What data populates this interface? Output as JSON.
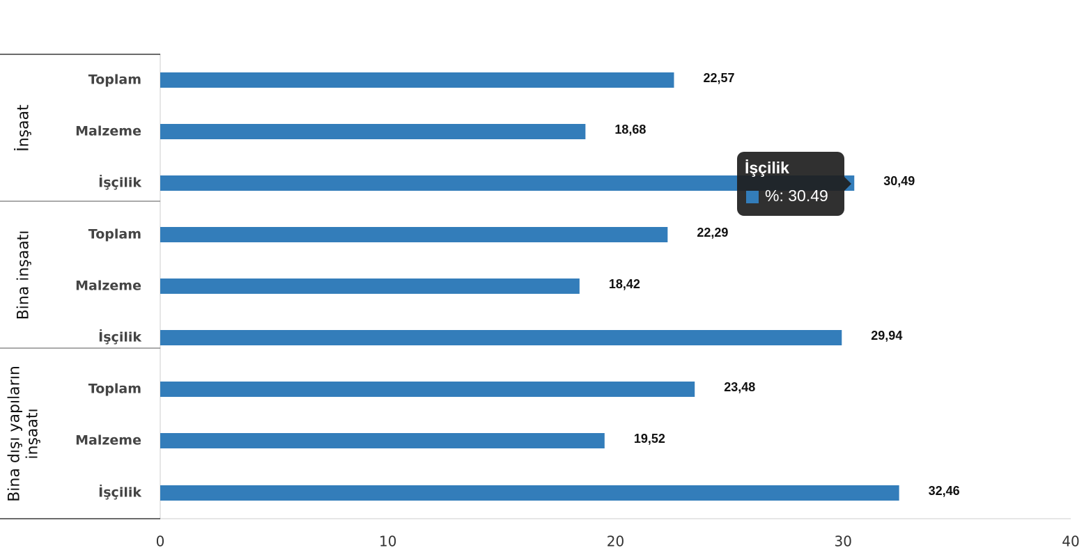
{
  "chart_data": {
    "type": "grouped-hbar",
    "series_name": "%",
    "color": "#337dba",
    "groups": [
      {
        "name": "İnşaat",
        "categories": [
          "Toplam",
          "Malzeme",
          "İşçilik"
        ],
        "values": [
          22.57,
          18.68,
          30.49
        ],
        "value_labels": [
          "22,57",
          "18,68",
          "30,49"
        ]
      },
      {
        "name": "Bina inşaatı",
        "categories": [
          "Toplam",
          "Malzeme",
          "İşçilik"
        ],
        "values": [
          22.29,
          18.42,
          29.94
        ],
        "value_labels": [
          "22,29",
          "18,42",
          "29,94"
        ]
      },
      {
        "name": "Bina dışı yapıların inşaatı",
        "categories": [
          "Toplam",
          "Malzeme",
          "İşçilik"
        ],
        "values": [
          23.48,
          19.52,
          32.46
        ],
        "value_labels": [
          "23,48",
          "19,52",
          "32,46"
        ]
      }
    ],
    "xlim": [
      0,
      40
    ],
    "xticks": [
      0,
      10,
      20,
      30,
      40
    ],
    "tooltip": {
      "title": "İşçilik",
      "text": "%: 30.49"
    }
  }
}
